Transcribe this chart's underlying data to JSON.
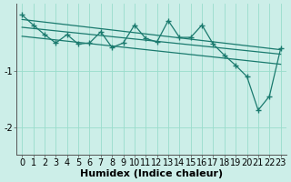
{
  "xlabel": "Humidex (Indice chaleur)",
  "ylabel": "",
  "bg_color": "#cceee8",
  "grid_color": "#99ddcc",
  "line_color": "#1a7a6e",
  "xlim": [
    -0.5,
    23.5
  ],
  "ylim": [
    -2.5,
    0.2
  ],
  "yticks": [
    -2,
    -1
  ],
  "xticks": [
    0,
    1,
    2,
    3,
    4,
    5,
    6,
    7,
    8,
    9,
    10,
    11,
    12,
    13,
    14,
    15,
    16,
    17,
    18,
    19,
    20,
    21,
    22,
    23
  ],
  "data_x": [
    0,
    1,
    2,
    3,
    4,
    5,
    6,
    7,
    8,
    9,
    10,
    11,
    12,
    13,
    14,
    15,
    16,
    17,
    18,
    19,
    20,
    21,
    22,
    23
  ],
  "data_y": [
    0.0,
    -0.18,
    -0.35,
    -0.5,
    -0.35,
    -0.52,
    -0.5,
    -0.3,
    -0.58,
    -0.5,
    -0.18,
    -0.42,
    -0.48,
    -0.1,
    -0.4,
    -0.4,
    -0.18,
    -0.52,
    -0.72,
    -0.9,
    -1.1,
    -1.7,
    -1.45,
    -0.6
  ],
  "upper_line_x": [
    0,
    23
  ],
  "upper_line_y": [
    -0.08,
    -0.62
  ],
  "mid_line_x": [
    0,
    23
  ],
  "mid_line_y": [
    -0.22,
    -0.7
  ],
  "lower_line_x": [
    0,
    23
  ],
  "lower_line_y": [
    -0.38,
    -0.88
  ],
  "font_size_label": 8,
  "font_size_tick": 7
}
